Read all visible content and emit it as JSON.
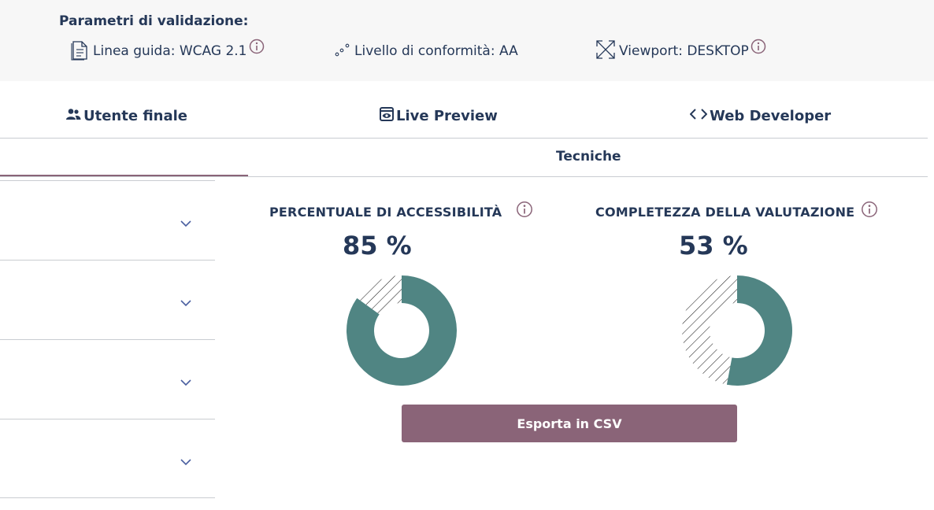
{
  "params": {
    "title": "Parametri di validazione:",
    "items": [
      {
        "icon": "document-icon",
        "label": "Linea guida: WCAG 2.1",
        "has_info": true
      },
      {
        "icon": "level-dots-icon",
        "label": "Livello di conformità: AA",
        "has_info": false
      },
      {
        "icon": "expand-arrows-icon",
        "label": "Viewport: DESKTOP",
        "has_info": true
      }
    ]
  },
  "tabs": [
    {
      "icon": "users-icon",
      "label": "Utente finale"
    },
    {
      "icon": "eye-icon",
      "label": "Live Preview"
    },
    {
      "icon": "code-icon",
      "label": "Web Developer"
    }
  ],
  "subtabs": {
    "second_label": "Tecniche"
  },
  "accordion": {
    "item_count": 4
  },
  "gauges": [
    {
      "title": "PERCENTUALE DI ACCESSIBILITÀ",
      "value_text": "85 %",
      "value": 85
    },
    {
      "title": "COMPLETEZZA DELLA VALUTAZIONE",
      "value_text": "53 %",
      "value": 53
    }
  ],
  "export_button": {
    "label": "Esporta in CSV"
  },
  "colors": {
    "filled": "#508583",
    "accent": "#8a6478",
    "text": "#253858",
    "header_bg": "#f7f7f7"
  }
}
